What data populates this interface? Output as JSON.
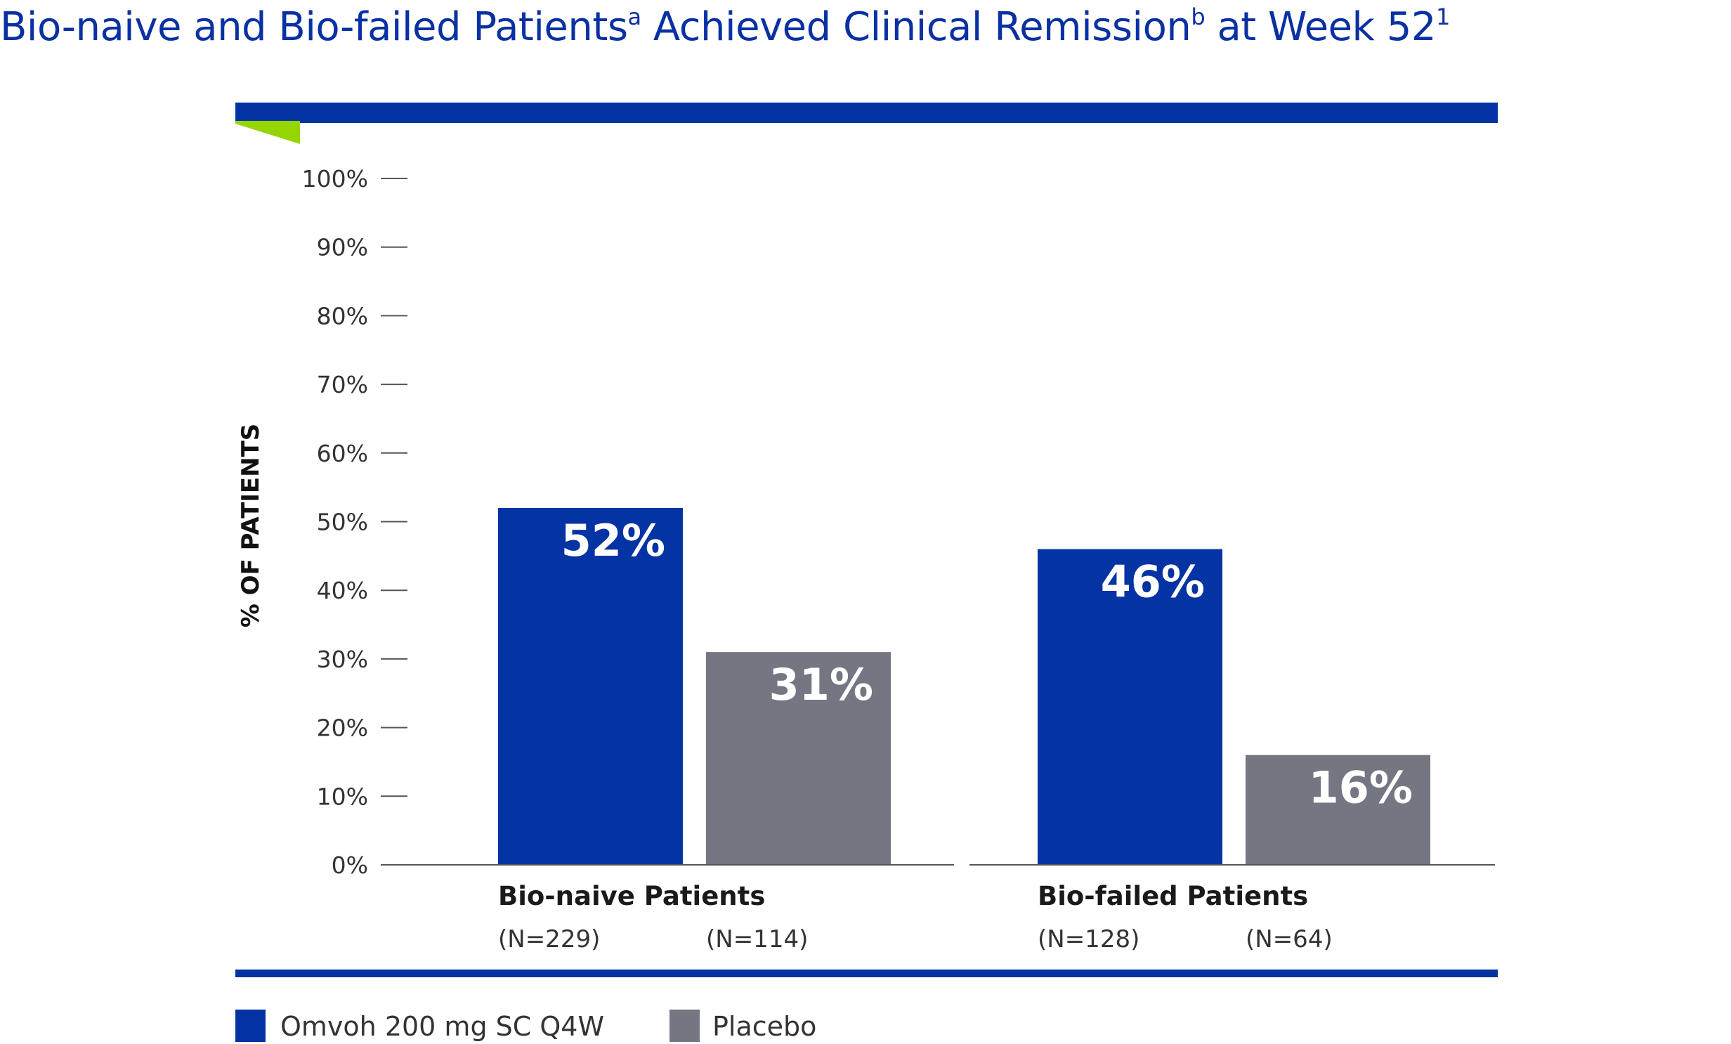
{
  "title": {
    "part1": "Bio-naive and Bio-failed Patients",
    "sup_a": "a",
    "part2": " Achieved Clinical Remission",
    "sup_b": "b",
    "part3": " at Week 52",
    "sup_ref": "1"
  },
  "colors": {
    "title": "#0a31a3",
    "omvoh": "#0433a3",
    "placebo": "#747682",
    "accent_green": "#95d600",
    "axis": "#555555"
  },
  "chart_data": {
    "type": "bar",
    "ylabel": "% OF PATIENTS",
    "ylim": [
      0,
      100
    ],
    "yticks": [
      "0%",
      "10%",
      "20%",
      "30%",
      "40%",
      "50%",
      "60%",
      "70%",
      "80%",
      "90%",
      "100%"
    ],
    "categories": [
      "Bio-naive Patients",
      "Bio-failed Patients"
    ],
    "series": [
      {
        "name": "Omvoh 200 mg SC Q4W",
        "values": [
          52,
          46
        ],
        "labels": [
          "52%",
          "46%"
        ],
        "n": [
          "(N=229)",
          "(N=128)"
        ]
      },
      {
        "name": "Placebo",
        "values": [
          31,
          16
        ],
        "labels": [
          "31%",
          "16%"
        ],
        "n": [
          "(N=114)",
          "(N=64)"
        ]
      }
    ],
    "legend": "bottom-left",
    "grid": false
  }
}
